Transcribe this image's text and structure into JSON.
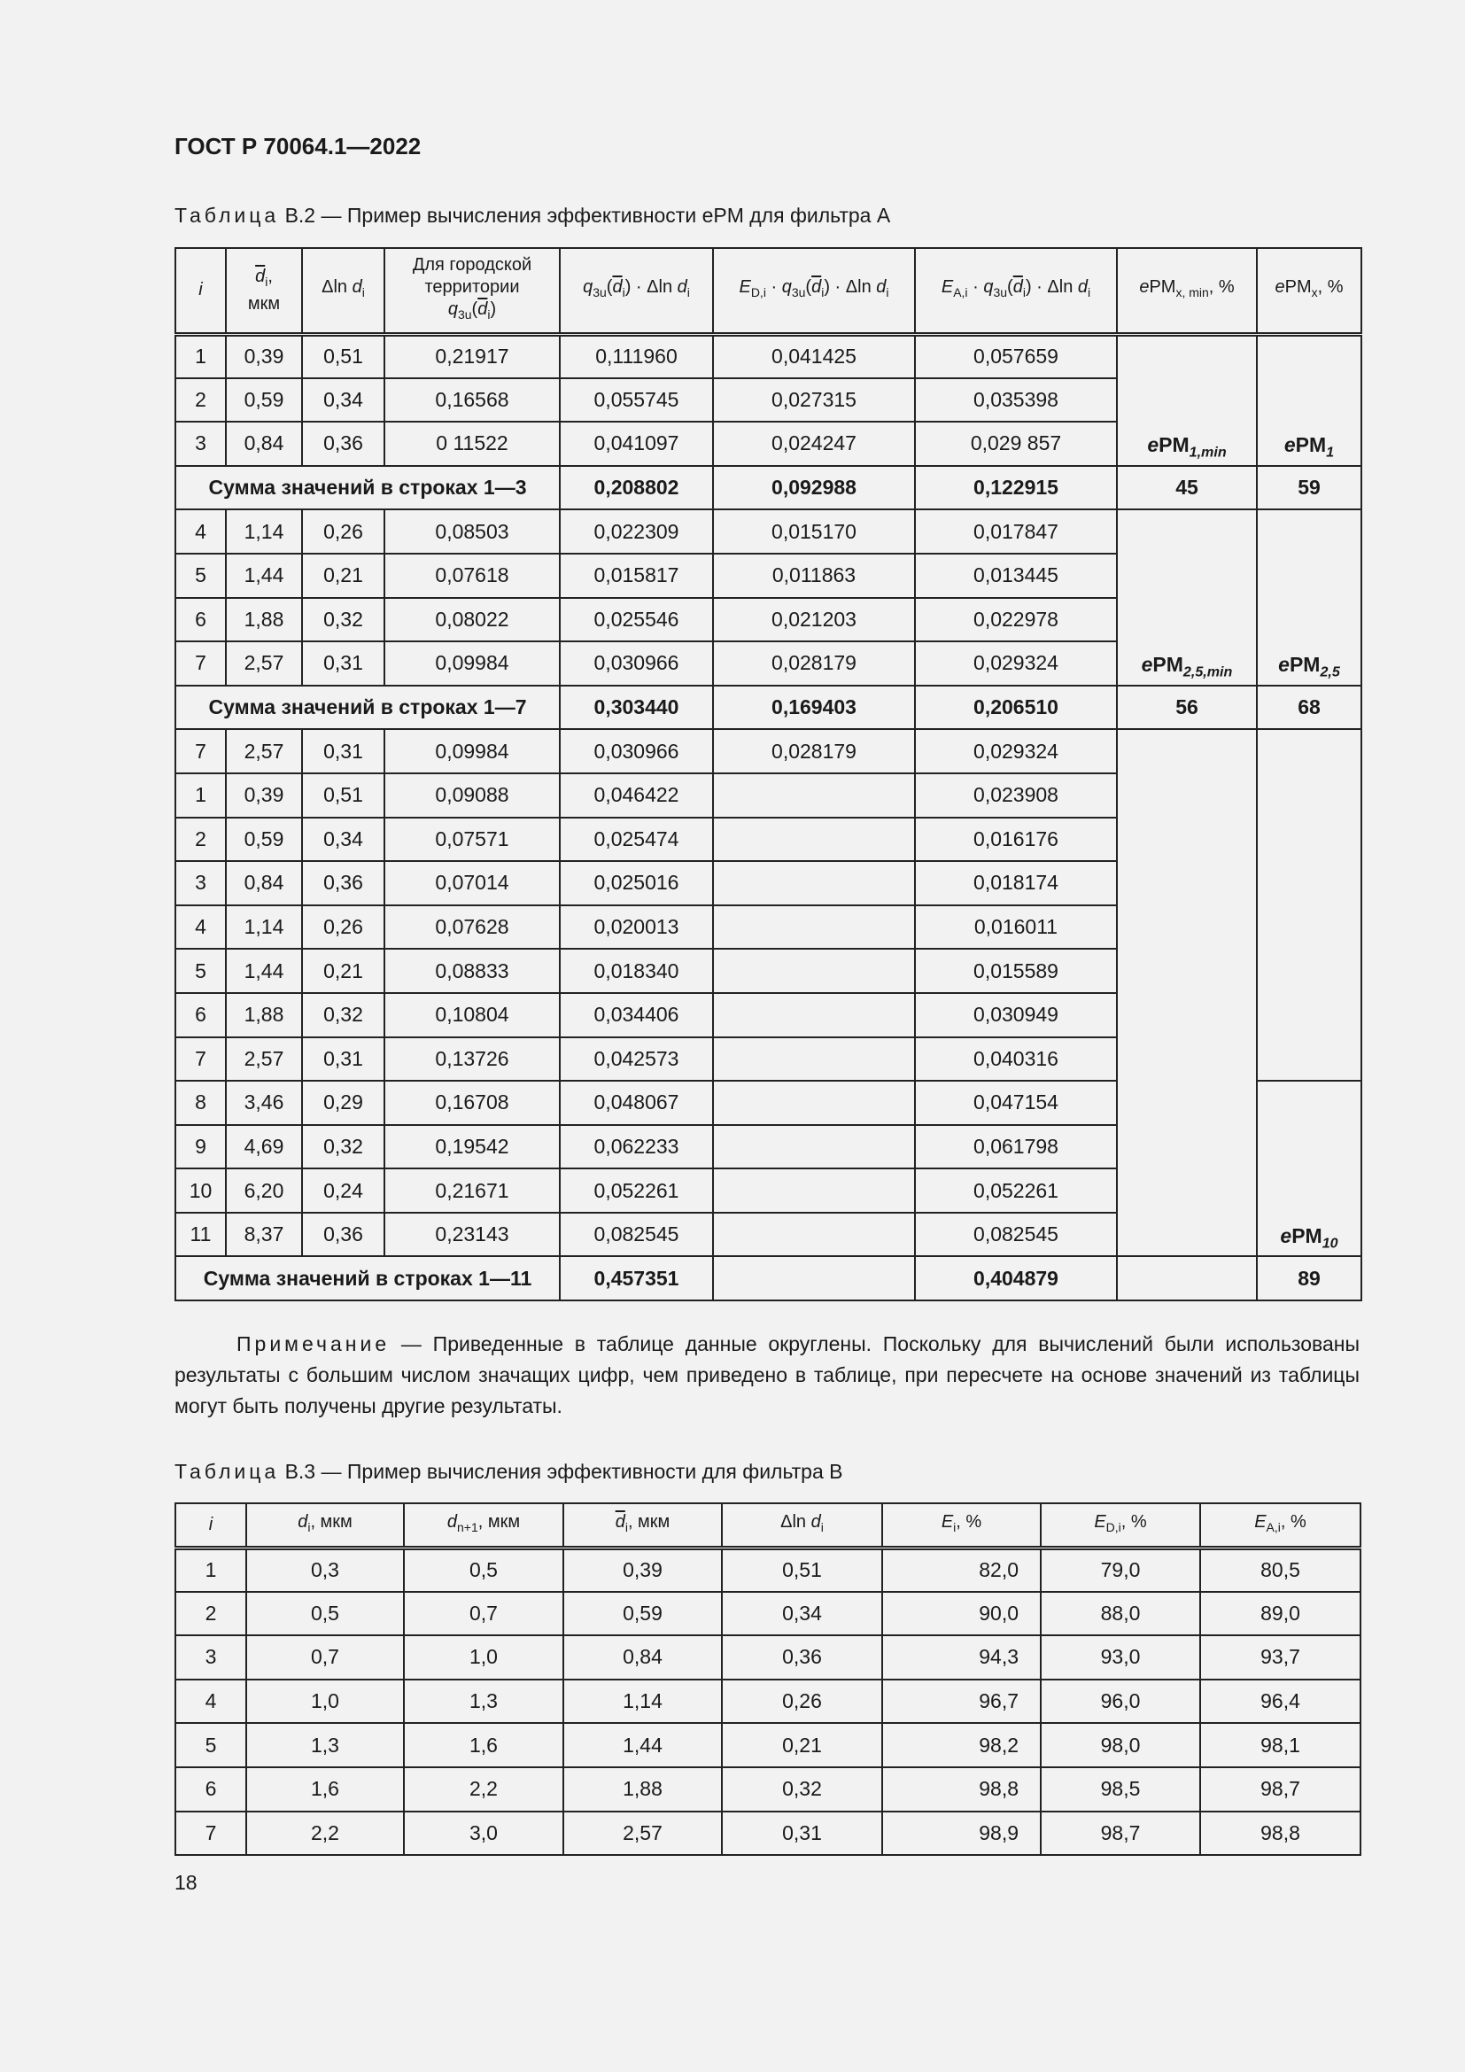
{
  "header": {
    "doc_id": "ГОСТ Р 70064.1—2022"
  },
  "table_b2": {
    "caption_word": "Таблица",
    "caption_text": " В.2 — Пример вычисления эффективности ePM для фильтра А",
    "columns": [
      [
        [
          "i",
          "it"
        ]
      ],
      [
        [
          "d",
          "bar"
        ],
        [
          "i",
          "sub"
        ],
        [
          ",",
          ""
        ],
        [
          "\nмкм",
          ""
        ]
      ],
      [
        [
          "Δln ",
          ""
        ],
        [
          "d",
          "it"
        ],
        [
          "i",
          "sub"
        ]
      ],
      [
        [
          "Для городской территории\n",
          ""
        ],
        [
          "q",
          "it"
        ],
        [
          "3u",
          "sub"
        ],
        [
          "(",
          ""
        ],
        [
          "d",
          "bar"
        ],
        [
          "i",
          "sub"
        ],
        [
          ")",
          ""
        ]
      ],
      [
        [
          "q",
          "it"
        ],
        [
          "3u",
          "sub"
        ],
        [
          "(",
          ""
        ],
        [
          "d",
          "bar"
        ],
        [
          "i",
          "sub"
        ],
        [
          ") · Δln ",
          ""
        ],
        [
          "d",
          "it"
        ],
        [
          "i",
          "sub"
        ]
      ],
      [
        [
          "E",
          "it"
        ],
        [
          "D,i",
          "sub"
        ],
        [
          " · ",
          ""
        ],
        [
          "q",
          "it"
        ],
        [
          "3u",
          "sub"
        ],
        [
          "(",
          ""
        ],
        [
          "d",
          "bar"
        ],
        [
          "i",
          "sub"
        ],
        [
          ") · Δln ",
          ""
        ],
        [
          "d",
          "it"
        ],
        [
          "i",
          "sub"
        ]
      ],
      [
        [
          "E",
          "it"
        ],
        [
          "A,i",
          "sub"
        ],
        [
          " · ",
          ""
        ],
        [
          "q",
          "it"
        ],
        [
          "3u",
          "sub"
        ],
        [
          "(",
          ""
        ],
        [
          "d",
          "bar"
        ],
        [
          "i",
          "sub"
        ],
        [
          ") · Δln ",
          ""
        ],
        [
          "d",
          "it"
        ],
        [
          "i",
          "sub"
        ]
      ],
      [
        [
          "e",
          "it"
        ],
        [
          "PM",
          ""
        ],
        [
          "x, min",
          "sub"
        ],
        [
          ", %",
          ""
        ]
      ],
      [
        [
          "e",
          "it"
        ],
        [
          "PM",
          ""
        ],
        [
          "x",
          "sub"
        ],
        [
          ", %",
          ""
        ]
      ]
    ],
    "groups": [
      {
        "rows": [
          [
            "1",
            "0,39",
            "0,51",
            "0,21917",
            "0,111960",
            "0,041425",
            "0,057659"
          ],
          [
            "2",
            "0,59",
            "0,34",
            "0,16568",
            "0,055745",
            "0,027315",
            "0,035398"
          ],
          [
            "3",
            "0,84",
            "0,36",
            "0 11522",
            "0,041097",
            "0,024247",
            "0,029 857"
          ]
        ],
        "epm_min_label": [
          "e",
          "PM",
          "1,min"
        ],
        "epm_label": [
          "e",
          "PM",
          "1"
        ],
        "sum": {
          "label": "Сумма значений в строках 1—3",
          "q": "0,208802",
          "ed": "0,092988",
          "ea": "0,122915",
          "epm_min": "45",
          "epm": "59"
        }
      },
      {
        "rows": [
          [
            "4",
            "1,14",
            "0,26",
            "0,08503",
            "0,022309",
            "0,015170",
            "0,017847"
          ],
          [
            "5",
            "1,44",
            "0,21",
            "0,07618",
            "0,015817",
            "0,011863",
            "0,013445"
          ],
          [
            "6",
            "1,88",
            "0,32",
            "0,08022",
            "0,025546",
            "0,021203",
            "0,022978"
          ],
          [
            "7",
            "2,57",
            "0,31",
            "0,09984",
            "0,030966",
            "0,028179",
            "0,029324"
          ]
        ],
        "epm_min_label": [
          "e",
          "PM",
          "2,5,min"
        ],
        "epm_label": [
          "e",
          "PM",
          "2,5"
        ],
        "sum": {
          "label": "Сумма значений в строках 1—7",
          "q": "0,303440",
          "ed": "0,169403",
          "ea": "0,206510",
          "epm_min": "56",
          "epm": "68"
        }
      },
      {
        "rows": [
          [
            "7",
            "2,57",
            "0,31",
            "0,09984",
            "0,030966",
            "0,028179",
            "0,029324"
          ],
          [
            "1",
            "0,39",
            "0,51",
            "0,09088",
            "0,046422",
            "",
            "0,023908"
          ],
          [
            "2",
            "0,59",
            "0,34",
            "0,07571",
            "0,025474",
            "",
            "0,016176"
          ],
          [
            "3",
            "0,84",
            "0,36",
            "0,07014",
            "0,025016",
            "",
            "0,018174"
          ],
          [
            "4",
            "1,14",
            "0,26",
            "0,07628",
            "0,020013",
            "",
            "0,016011"
          ],
          [
            "5",
            "1,44",
            "0,21",
            "0,08833",
            "0,018340",
            "",
            "0,015589"
          ],
          [
            "6",
            "1,88",
            "0,32",
            "0,10804",
            "0,034406",
            "",
            "0,030949"
          ],
          [
            "7",
            "2,57",
            "0,31",
            "0,13726",
            "0,042573",
            "",
            "0,040316"
          ],
          [
            "8",
            "3,46",
            "0,29",
            "0,16708",
            "0,048067",
            "",
            "0,047154"
          ],
          [
            "9",
            "4,69",
            "0,32",
            "0,19542",
            "0,062233",
            "",
            "0,061798"
          ],
          [
            "10",
            "6,20",
            "0,24",
            "0,21671",
            "0,052261",
            "",
            "0,052261"
          ],
          [
            "11",
            "8,37",
            "0,36",
            "0,23143",
            "0,082545",
            "",
            "0,082545"
          ]
        ],
        "epm_min_label": null,
        "epm_label": [
          "e",
          "PM",
          "10"
        ],
        "epm_split": 8,
        "sum": {
          "label": "Сумма значений в строках 1—11",
          "q": "0,457351",
          "ed": "",
          "ea": "0,404879",
          "epm_min": "",
          "epm": "89"
        }
      }
    ]
  },
  "note": {
    "word": "Примечание",
    "text": " — Приведенные в таблице данные округлены. Поскольку для вычислений были использованы результаты с большим числом значащих цифр, чем приведено в таблице, при пересчете на основе значений из таблицы могут быть получены другие результаты."
  },
  "table_b3": {
    "caption_word": "Таблица",
    "caption_text": " В.3 — Пример вычисления эффективности для фильтра В",
    "columns": [
      [
        [
          "i",
          "it"
        ]
      ],
      [
        [
          "d",
          "it"
        ],
        [
          "i",
          "sub"
        ],
        [
          ", мкм",
          ""
        ]
      ],
      [
        [
          "d",
          "it"
        ],
        [
          "n+1",
          "sub"
        ],
        [
          ", мкм",
          ""
        ]
      ],
      [
        [
          "d",
          "bar"
        ],
        [
          "i",
          "sub"
        ],
        [
          ", мкм",
          ""
        ]
      ],
      [
        [
          "Δln ",
          ""
        ],
        [
          "d",
          "it"
        ],
        [
          "i",
          "sub"
        ]
      ],
      [
        [
          "E",
          "it"
        ],
        [
          "i",
          "sub"
        ],
        [
          ", %",
          ""
        ]
      ],
      [
        [
          "E",
          "it"
        ],
        [
          "D,i",
          "sub"
        ],
        [
          ", %",
          ""
        ]
      ],
      [
        [
          "E",
          "it"
        ],
        [
          "A,i",
          "sub"
        ],
        [
          ", %",
          ""
        ]
      ]
    ],
    "rows": [
      [
        "1",
        "0,3",
        "0,5",
        "0,39",
        "0,51",
        "82,0",
        "79,0",
        "80,5"
      ],
      [
        "2",
        "0,5",
        "0,7",
        "0,59",
        "0,34",
        "90,0",
        "88,0",
        "89,0"
      ],
      [
        "3",
        "0,7",
        "1,0",
        "0,84",
        "0,36",
        "94,3",
        "93,0",
        "93,7"
      ],
      [
        "4",
        "1,0",
        "1,3",
        "1,14",
        "0,26",
        "96,7",
        "96,0",
        "96,4"
      ],
      [
        "5",
        "1,3",
        "1,6",
        "1,44",
        "0,21",
        "98,2",
        "98,0",
        "98,1"
      ],
      [
        "6",
        "1,6",
        "2,2",
        "1,88",
        "0,32",
        "98,8",
        "98,5",
        "98,7"
      ],
      [
        "7",
        "2,2",
        "3,0",
        "2,57",
        "0,31",
        "98,9",
        "98,7",
        "98,8"
      ]
    ]
  },
  "page_number": "18"
}
